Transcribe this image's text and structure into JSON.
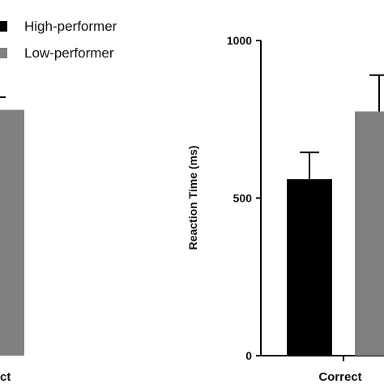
{
  "chart_data": [
    {
      "type": "bar",
      "panel": "left",
      "categories": [
        "Correct"
      ],
      "series": [
        {
          "name": "Low-performer",
          "values": [
            780
          ],
          "error": [
            40
          ]
        }
      ],
      "ylim": [
        0,
        1000
      ]
    },
    {
      "type": "bar",
      "panel": "right",
      "categories": [
        "Correct"
      ],
      "ylabel": "Reaction Time (ms)",
      "yticks": [
        0,
        500,
        1000
      ],
      "ylim": [
        0,
        1000
      ],
      "series": [
        {
          "name": "High-performer",
          "values": [
            560
          ],
          "error": [
            85
          ]
        },
        {
          "name": "Low-performer",
          "values": [
            775
          ],
          "error": [
            115
          ]
        }
      ]
    }
  ],
  "legend": {
    "items": [
      {
        "label": "High-performer",
        "color": "#000000"
      },
      {
        "label": "Low-performer",
        "color": "#808080"
      }
    ]
  },
  "left_panel": {
    "category_label_fragment": "ct"
  },
  "colors": {
    "high": "#000000",
    "low": "#808080",
    "axis": "#000000"
  }
}
